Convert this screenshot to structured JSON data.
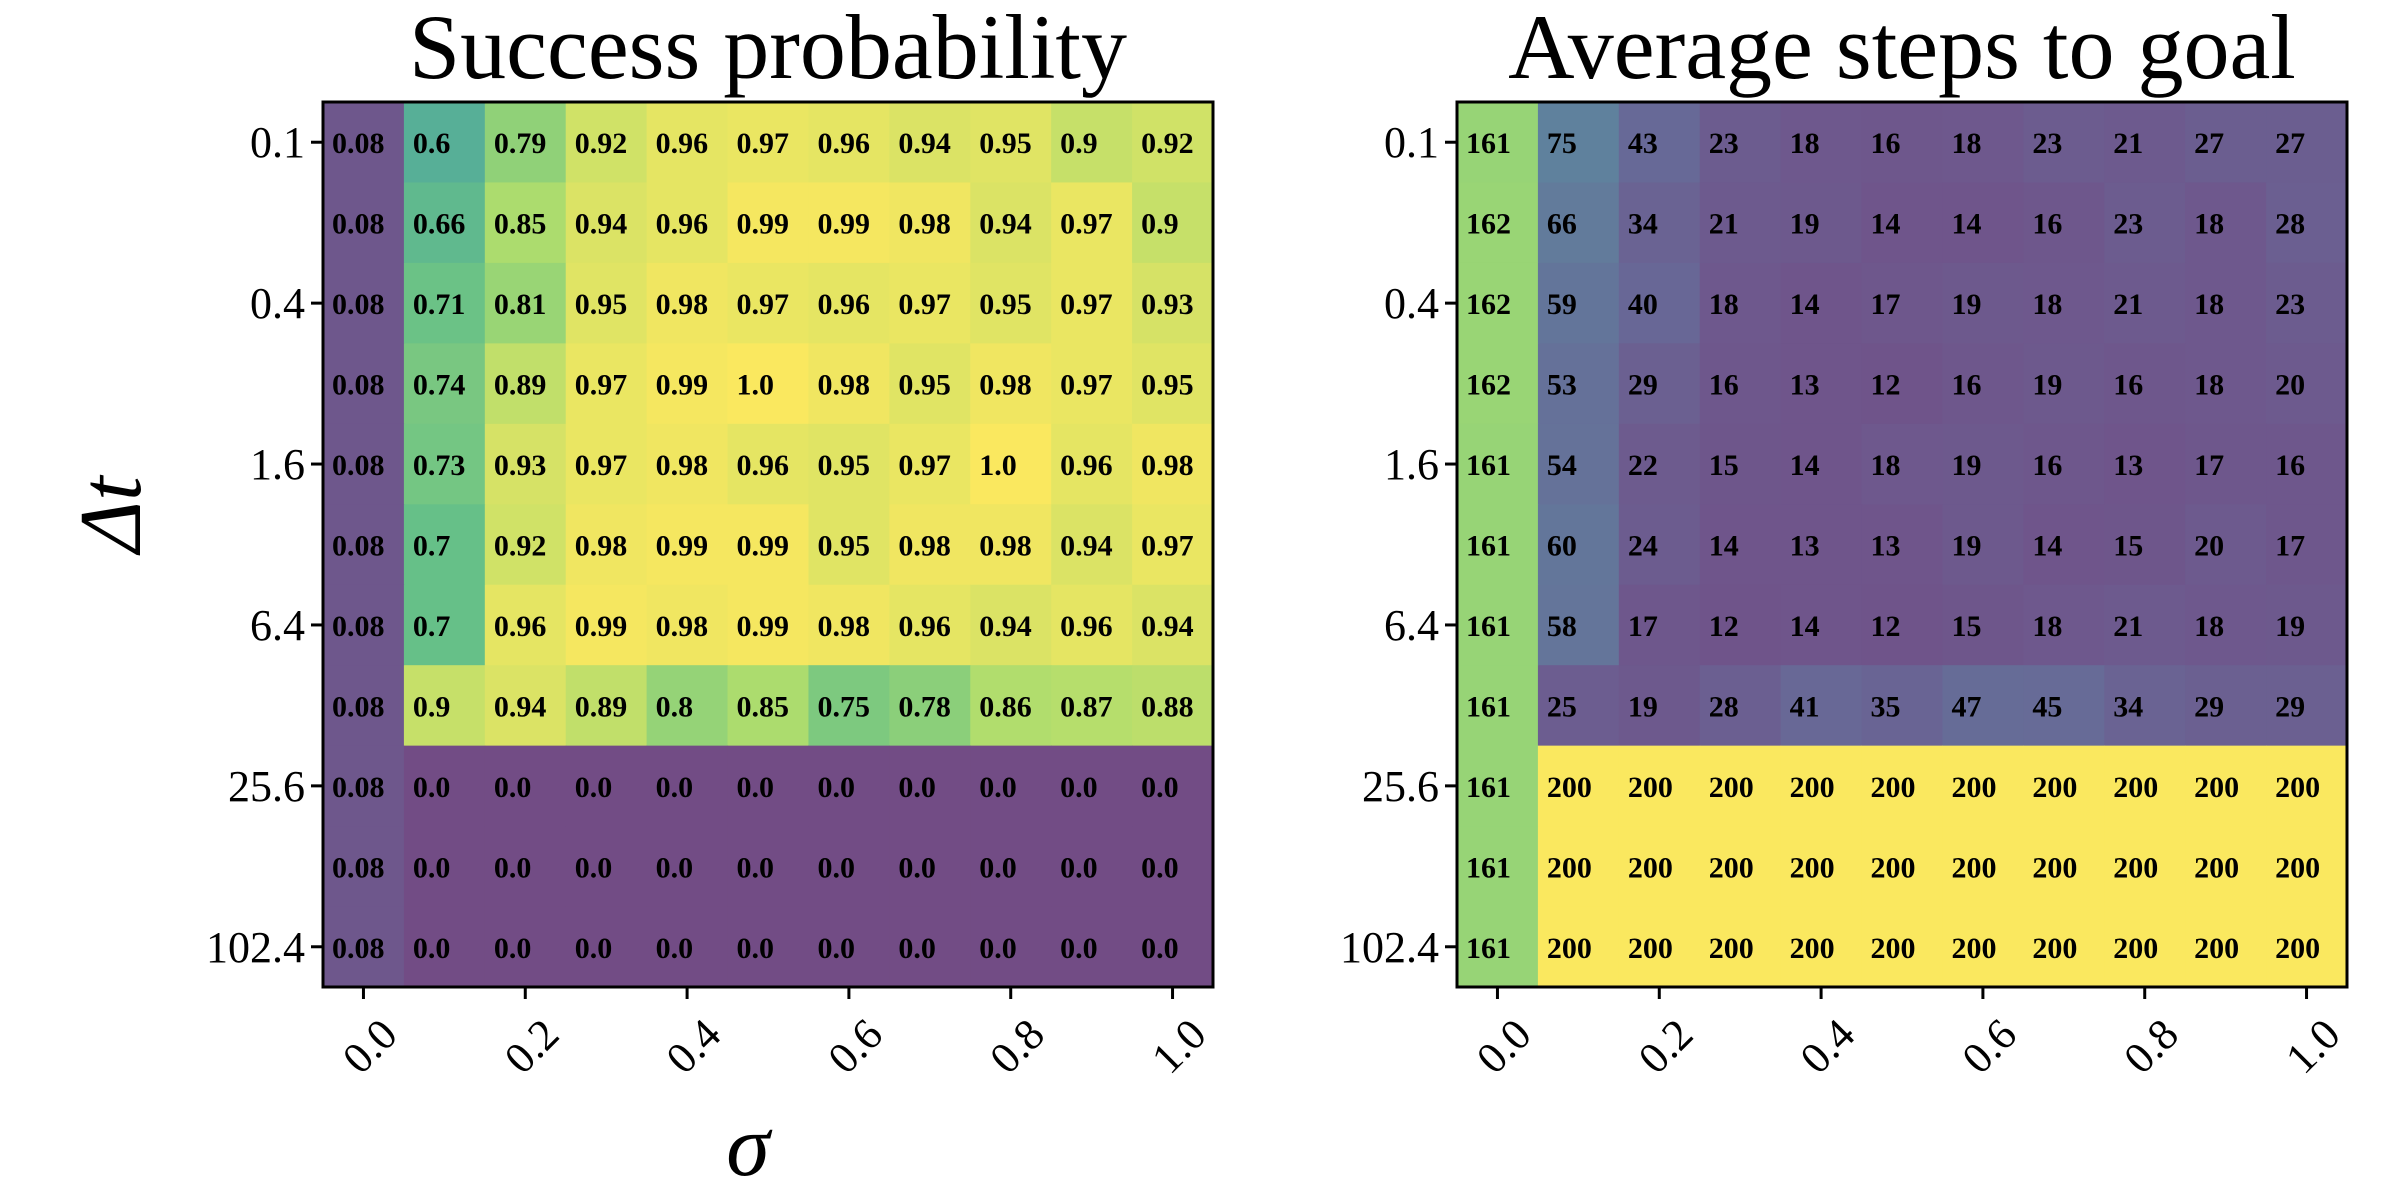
{
  "chart_data": [
    {
      "type": "heatmap",
      "title": "Success probability",
      "xlabel": "σ",
      "ylabel": "Δt",
      "x_categories": [
        "0.0",
        "0.1",
        "0.2",
        "0.3",
        "0.4",
        "0.5",
        "0.6",
        "0.7",
        "0.8",
        "0.9",
        "1.0"
      ],
      "y_categories": [
        "0.1",
        "0.2",
        "0.4",
        "0.8",
        "1.6",
        "3.2",
        "6.4",
        "12.8",
        "25.6",
        "51.2",
        "102.4"
      ],
      "x_tick_labels": [
        "0.0",
        "0.2",
        "0.4",
        "0.6",
        "0.8",
        "1.0"
      ],
      "y_tick_labels": [
        "0.1",
        "0.4",
        "1.6",
        "6.4",
        "25.6",
        "102.4"
      ],
      "value_range": [
        0,
        1
      ],
      "colormap": "viridis",
      "values": [
        [
          "0.08",
          "0.6",
          "0.79",
          "0.92",
          "0.96",
          "0.97",
          "0.96",
          "0.94",
          "0.95",
          "0.9",
          "0.92"
        ],
        [
          "0.08",
          "0.66",
          "0.85",
          "0.94",
          "0.96",
          "0.99",
          "0.99",
          "0.98",
          "0.94",
          "0.97",
          "0.9"
        ],
        [
          "0.08",
          "0.71",
          "0.81",
          "0.95",
          "0.98",
          "0.97",
          "0.96",
          "0.97",
          "0.95",
          "0.97",
          "0.93"
        ],
        [
          "0.08",
          "0.74",
          "0.89",
          "0.97",
          "0.99",
          "1.0",
          "0.98",
          "0.95",
          "0.98",
          "0.97",
          "0.95"
        ],
        [
          "0.08",
          "0.73",
          "0.93",
          "0.97",
          "0.98",
          "0.96",
          "0.95",
          "0.97",
          "1.0",
          "0.96",
          "0.98"
        ],
        [
          "0.08",
          "0.7",
          "0.92",
          "0.98",
          "0.99",
          "0.99",
          "0.95",
          "0.98",
          "0.98",
          "0.94",
          "0.97"
        ],
        [
          "0.08",
          "0.7",
          "0.96",
          "0.99",
          "0.98",
          "0.99",
          "0.98",
          "0.96",
          "0.94",
          "0.96",
          "0.94"
        ],
        [
          "0.08",
          "0.9",
          "0.94",
          "0.89",
          "0.8",
          "0.85",
          "0.75",
          "0.78",
          "0.86",
          "0.87",
          "0.88"
        ],
        [
          "0.08",
          "0.0",
          "0.0",
          "0.0",
          "0.0",
          "0.0",
          "0.0",
          "0.0",
          "0.0",
          "0.0",
          "0.0"
        ],
        [
          "0.08",
          "0.0",
          "0.0",
          "0.0",
          "0.0",
          "0.0",
          "0.0",
          "0.0",
          "0.0",
          "0.0",
          "0.0"
        ],
        [
          "0.08",
          "0.0",
          "0.0",
          "0.0",
          "0.0",
          "0.0",
          "0.0",
          "0.0",
          "0.0",
          "0.0",
          "0.0"
        ]
      ]
    },
    {
      "type": "heatmap",
      "title": "Average steps to goal",
      "xlabel": "",
      "ylabel": "",
      "x_categories": [
        "0.0",
        "0.1",
        "0.2",
        "0.3",
        "0.4",
        "0.5",
        "0.6",
        "0.7",
        "0.8",
        "0.9",
        "1.0"
      ],
      "y_categories": [
        "0.1",
        "0.2",
        "0.4",
        "0.8",
        "1.6",
        "3.2",
        "6.4",
        "12.8",
        "25.6",
        "51.2",
        "102.4"
      ],
      "x_tick_labels": [
        "0.0",
        "0.2",
        "0.4",
        "0.6",
        "0.8",
        "1.0"
      ],
      "y_tick_labels": [
        "0.1",
        "0.4",
        "1.6",
        "6.4",
        "25.6",
        "102.4"
      ],
      "value_range": [
        0,
        200
      ],
      "colormap": "viridis",
      "values": [
        [
          "161",
          "75",
          "43",
          "23",
          "18",
          "16",
          "18",
          "23",
          "21",
          "27",
          "27"
        ],
        [
          "162",
          "66",
          "34",
          "21",
          "19",
          "14",
          "14",
          "16",
          "23",
          "18",
          "28"
        ],
        [
          "162",
          "59",
          "40",
          "18",
          "14",
          "17",
          "19",
          "18",
          "21",
          "18",
          "23"
        ],
        [
          "162",
          "53",
          "29",
          "16",
          "13",
          "12",
          "16",
          "19",
          "16",
          "18",
          "20"
        ],
        [
          "161",
          "54",
          "22",
          "15",
          "14",
          "18",
          "19",
          "16",
          "13",
          "17",
          "16"
        ],
        [
          "161",
          "60",
          "24",
          "14",
          "13",
          "13",
          "19",
          "14",
          "15",
          "20",
          "17"
        ],
        [
          "161",
          "58",
          "17",
          "12",
          "14",
          "12",
          "15",
          "18",
          "21",
          "18",
          "19"
        ],
        [
          "161",
          "25",
          "19",
          "28",
          "41",
          "35",
          "47",
          "45",
          "34",
          "29",
          "29"
        ],
        [
          "161",
          "200",
          "200",
          "200",
          "200",
          "200",
          "200",
          "200",
          "200",
          "200",
          "200"
        ],
        [
          "161",
          "200",
          "200",
          "200",
          "200",
          "200",
          "200",
          "200",
          "200",
          "200",
          "200"
        ],
        [
          "161",
          "200",
          "200",
          "200",
          "200",
          "200",
          "200",
          "200",
          "200",
          "200",
          "200"
        ]
      ]
    }
  ]
}
